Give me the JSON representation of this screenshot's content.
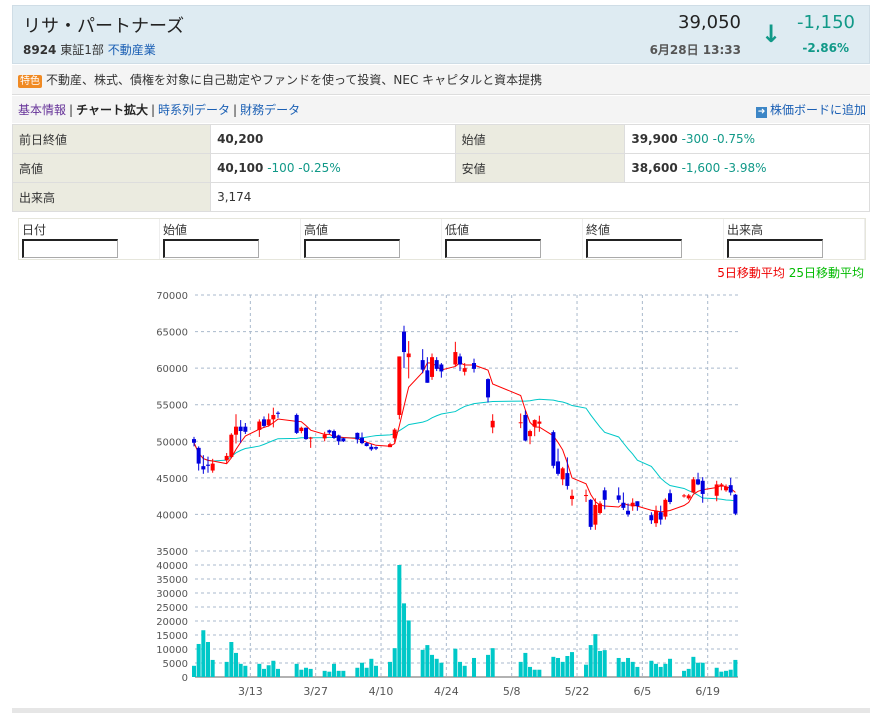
{
  "header": {
    "company": "リサ・パートナーズ",
    "code": "8924",
    "market": "東証1部",
    "sector": "不動産業",
    "price": "39,050",
    "change": "-1,150",
    "change_pct": "-2.86%",
    "datetime": "6月28日 13:33",
    "direction_icon": "down-arrow-icon"
  },
  "feature": {
    "tag": "特色",
    "text": "不動産、株式、債権を対象に自己勘定やファンドを使って投資、NEC キャピタルと資本提携"
  },
  "nav": {
    "items": [
      "基本情報",
      "チャート拡大",
      "時系列データ",
      "財務データ"
    ],
    "add_board": "株価ボードに追加"
  },
  "info": {
    "prev_close_label": "前日終値",
    "prev_close": "40,200",
    "open_label": "始値",
    "open": "39,900",
    "open_chg": "-300 -0.75%",
    "high_label": "高値",
    "high": "40,100",
    "high_chg": "-100 -0.25%",
    "low_label": "安値",
    "low": "38,600",
    "low_chg": "-1,600 -3.98%",
    "volume_label": "出来高",
    "volume": "3,174"
  },
  "inputs": {
    "labels": [
      "日付",
      "始値",
      "高値",
      "低値",
      "終値",
      "出来高"
    ]
  },
  "legend": {
    "ma5": "5日移動平均",
    "ma25": "25日移動平均"
  },
  "colors": {
    "up": "#ff0000",
    "down": "#0000dd",
    "ma5": "#ff0000",
    "ma25": "#00c8c8",
    "volume": "#00c8c8",
    "accent": "#119988"
  },
  "chart_data": {
    "type": "candlestick",
    "price_ticks": [
      70000,
      65000,
      60000,
      55000,
      50000,
      45000,
      40000,
      35000
    ],
    "price_range": [
      35000,
      70000
    ],
    "volume_ticks": [
      40000,
      35000,
      30000,
      25000,
      20000,
      15000,
      10000,
      5000,
      0
    ],
    "volume_range": [
      0,
      40000
    ],
    "x_ticks": [
      "3/13",
      "3/27",
      "4/10",
      "4/24",
      "5/8",
      "5/22",
      "6/5",
      "6/19"
    ],
    "grid": true,
    "dates": [
      "2/27",
      "2/28",
      "3/1",
      "3/2",
      "3/3",
      "3/6",
      "3/7",
      "3/8",
      "3/9",
      "3/10",
      "3/13",
      "3/14",
      "3/15",
      "3/16",
      "3/17",
      "3/21",
      "3/22",
      "3/23",
      "3/24",
      "3/27",
      "3/28",
      "3/29",
      "3/30",
      "3/31",
      "4/3",
      "4/4",
      "4/5",
      "4/6",
      "4/7",
      "4/10",
      "4/11",
      "4/12",
      "4/13",
      "4/14",
      "4/17",
      "4/18",
      "4/19",
      "4/20",
      "4/21",
      "4/24",
      "4/25",
      "4/26",
      "4/28",
      "5/1",
      "5/2",
      "5/8",
      "5/9",
      "5/10",
      "5/11",
      "5/12",
      "5/15",
      "5/16",
      "5/17",
      "5/18",
      "5/19",
      "5/22",
      "5/23",
      "5/24",
      "5/25",
      "5/26",
      "5/29",
      "5/30",
      "5/31",
      "6/1",
      "6/2",
      "6/5",
      "6/6",
      "6/7",
      "6/8",
      "6/9",
      "6/12",
      "6/13",
      "6/14",
      "6/15",
      "6/16",
      "6/19",
      "6/20",
      "6/21",
      "6/22",
      "6/23"
    ],
    "ohlc": [
      [
        50300,
        50600,
        49300,
        49800
      ],
      [
        49100,
        49300,
        46000,
        46950
      ],
      [
        46600,
        48100,
        45550,
        46150
      ],
      [
        46800,
        47900,
        45700,
        46650
      ],
      [
        46000,
        47600,
        45700,
        46950
      ],
      [
        47400,
        48400,
        47000,
        48000
      ],
      [
        47850,
        51100,
        47700,
        50900
      ],
      [
        50900,
        53700,
        49700,
        52000
      ],
      [
        52000,
        52900,
        49800,
        51400
      ],
      [
        52000,
        52500,
        51000,
        51300
      ],
      [
        51550,
        53000,
        50600,
        52700
      ],
      [
        53000,
        53400,
        51900,
        52100
      ],
      [
        52200,
        53800,
        52000,
        53000
      ],
      [
        53000,
        54600,
        51900,
        53600
      ],
      [
        53900,
        54100,
        53200,
        53800
      ],
      [
        53600,
        53800,
        51000,
        51150
      ],
      [
        51400,
        52000,
        51100,
        51850
      ],
      [
        51850,
        51900,
        50200,
        50300
      ],
      [
        50400,
        50600,
        49100,
        50500
      ],
      [
        50400,
        51300,
        50000,
        50900
      ],
      [
        51500,
        51600,
        51000,
        51200
      ],
      [
        51400,
        51600,
        50300,
        50450
      ],
      [
        50800,
        50900,
        49500,
        50000
      ],
      [
        50400,
        50500,
        49900,
        50000
      ],
      [
        51150,
        51200,
        49700,
        50250
      ],
      [
        50500,
        51200,
        49600,
        49750
      ],
      [
        49750,
        49900,
        49300,
        49350
      ],
      [
        49250,
        49600,
        48700,
        48900
      ],
      [
        49200,
        49300,
        48800,
        49000
      ],
      [
        49200,
        49800,
        49200,
        49600
      ],
      [
        50400,
        51800,
        49800,
        51600
      ],
      [
        53600,
        61600,
        53000,
        61600
      ],
      [
        65000,
        65800,
        60000,
        62200
      ],
      [
        61500,
        63700,
        58600,
        62000
      ],
      [
        61100,
        62600,
        59300,
        59800
      ],
      [
        59700,
        61500,
        58000,
        58000
      ],
      [
        58800,
        62000,
        58400,
        61500
      ],
      [
        61100,
        61500,
        59600,
        59900
      ],
      [
        60500,
        60700,
        58700,
        59550
      ],
      [
        60500,
        63600,
        60300,
        62200
      ],
      [
        61600,
        62000,
        59600,
        60500
      ],
      [
        59500,
        60700,
        59000,
        60000
      ],
      [
        60700,
        61300,
        59400,
        59900
      ],
      [
        58500,
        58600,
        55300,
        56000
      ],
      [
        51900,
        53700,
        51100,
        52800
      ],
      [
        52500,
        53800,
        51800,
        52600
      ],
      [
        53600,
        54200,
        50000,
        50100
      ],
      [
        50700,
        51600,
        49600,
        51400
      ],
      [
        52000,
        53000,
        50700,
        52900
      ],
      [
        52400,
        53500,
        51300,
        52700
      ],
      [
        51250,
        51500,
        46300,
        46650
      ],
      [
        47250,
        49000,
        45300,
        45550
      ],
      [
        44800,
        46500,
        44000,
        46300
      ],
      [
        45650,
        47800,
        43400,
        43900
      ],
      [
        42100,
        43400,
        41200,
        42550
      ],
      [
        42600,
        43400,
        41700,
        42650
      ],
      [
        42000,
        42100,
        37900,
        38300
      ],
      [
        38600,
        42200,
        37900,
        41300
      ],
      [
        40200,
        41800,
        40000,
        41500
      ],
      [
        43300,
        43700,
        40700,
        42000
      ],
      [
        42600,
        43700,
        41600,
        42000
      ],
      [
        41600,
        43000,
        40600,
        40900
      ],
      [
        40500,
        41500,
        39700,
        40000
      ],
      [
        41100,
        42200,
        40500,
        41600
      ],
      [
        41800,
        41800,
        40500,
        41150
      ],
      [
        39900,
        40300,
        38700,
        39200
      ],
      [
        38800,
        41200,
        38300,
        40500
      ],
      [
        40300,
        41200,
        38600,
        39300
      ],
      [
        39700,
        42200,
        39300,
        42000
      ],
      [
        42900,
        43400,
        41400,
        41700
      ],
      [
        42500,
        42800,
        42300,
        42600
      ],
      [
        42200,
        42800,
        42000,
        42600
      ],
      [
        43000,
        45100,
        42900,
        44800
      ],
      [
        44800,
        45700,
        44000,
        44100
      ],
      [
        44600,
        45100,
        41600,
        42800
      ],
      [
        42550,
        44600,
        41800,
        44100
      ],
      [
        43800,
        44300,
        43300,
        44100
      ],
      [
        43300,
        44100,
        43100,
        43800
      ],
      [
        44000,
        45000,
        42600,
        43000
      ],
      [
        42700,
        42800,
        39900,
        40100
      ]
    ],
    "volume": [
      4000,
      11800,
      16700,
      12500,
      6100,
      5400,
      12500,
      8600,
      4700,
      4000,
      4700,
      2900,
      4200,
      5800,
      2900,
      4700,
      2600,
      3300,
      2900,
      2200,
      1900,
      4700,
      2200,
      2200,
      3300,
      5100,
      3300,
      6500,
      4000,
      5400,
      10300,
      40000,
      26300,
      20200,
      9700,
      11400,
      7900,
      6500,
      5100,
      10100,
      5400,
      4000,
      6800,
      7900,
      10300,
      5400,
      8600,
      3600,
      2600,
      2600,
      7200,
      6800,
      5400,
      7500,
      8900,
      4400,
      11400,
      15300,
      9300,
      9600,
      6800,
      5400,
      6800,
      5400,
      3600,
      5800,
      4700,
      3600,
      4700,
      6500,
      2200,
      2900,
      7200,
      5100,
      5100,
      3300,
      1900,
      2200,
      2600,
      6100
    ],
    "moving_averages": [
      "5日移動平均",
      "25日移動平均"
    ]
  }
}
